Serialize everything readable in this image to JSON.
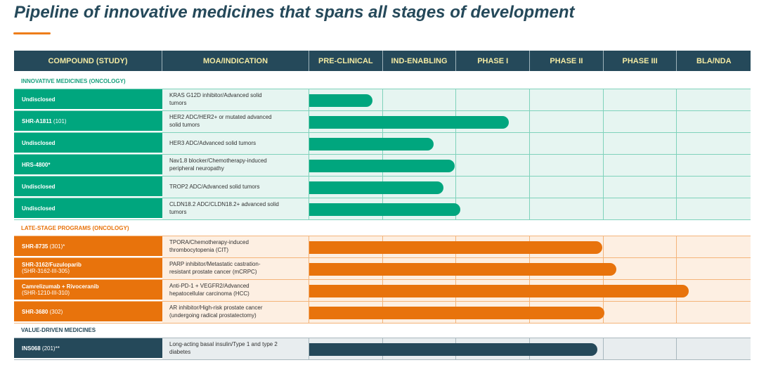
{
  "title": "Pipeline of innovative medicines that spans all stages of development",
  "columns": [
    "COMPOUND (STUDY)",
    "MOA/INDICATION",
    "PRE-CLINICAL",
    "IND-ENABLING",
    "PHASE I",
    "PHASE II",
    "PHASE III",
    "BLA/NDA"
  ],
  "sections": [
    {
      "label": "INNOVATIVE MEDICINES (ONCOLOGY)",
      "colors": {
        "label": "#17a07c",
        "cell": "#00a67e",
        "bg": "#e6f5f1",
        "grid": "#7fd2bb",
        "bar": "#00a67e"
      },
      "rows": [
        {
          "name": "Undisclosed",
          "study": "",
          "sub": "",
          "moa": "KRAS G12D inhibitor/Advanced solid tumors",
          "progress_stages": 0.86
        },
        {
          "name": "SHR-A1811",
          "study": " (101)",
          "sub": "",
          "moa": "HER2 ADC/HER2+ or mutated advanced solid tumors",
          "progress_stages": 2.71
        },
        {
          "name": "Undisclosed",
          "study": "",
          "sub": "",
          "moa": "HER3 ADC/Advanced solid tumors",
          "progress_stages": 1.69
        },
        {
          "name": "HRS-4800*",
          "study": "",
          "sub": "",
          "moa": "Nav1.8 blocker/Chemotherapy-induced peripheral neuropathy",
          "progress_stages": 1.98
        },
        {
          "name": "Undisclosed",
          "study": "",
          "sub": "",
          "moa": "TROP2 ADC/Advanced solid tumors",
          "progress_stages": 1.82
        },
        {
          "name": "Undisclosed",
          "study": "",
          "sub": "",
          "moa": "CLDN18.2 ADC/CLDN18.2+ advanced solid tumors",
          "progress_stages": 2.05
        }
      ]
    },
    {
      "label": "LATE-STAGE PROGRAMS (ONCOLOGY)",
      "colors": {
        "label": "#e8730c",
        "cell": "#e8730c",
        "bg": "#fdefe2",
        "grid": "#f4b47a",
        "bar": "#e8730c"
      },
      "rows": [
        {
          "name": "SHR-8735",
          "study": " (301)*",
          "sub": "",
          "moa": "TPORA/Chemotherapy-induced thrombocytopenia (CIT)",
          "progress_stages": 3.98
        },
        {
          "name": "SHR-3162/Fuzuloparib",
          "study": "",
          "sub": "(SHR-3162-III-305)",
          "moa": "PARP inhibitor/Metastatic castration-resistant prostate cancer (mCRPC)",
          "progress_stages": 4.17
        },
        {
          "name": "Camrelizumab + Rivoceranib",
          "study": "",
          "sub": "(SHR-1210-III-310)",
          "moa": "Anti-PD-1 + VEGFR2/Advanced hepatocellular carcinoma (HCC)",
          "progress_stages": 5.16
        },
        {
          "name": "SHR-3680",
          "study": " (302)",
          "sub": "",
          "moa": "AR inhibitor/High-risk prostate cancer (undergoing radical prostatectomy)",
          "progress_stages": 4.01
        }
      ]
    },
    {
      "label": "VALUE-DRIVEN MEDICINES",
      "colors": {
        "label": "#25495a",
        "cell": "#25495a",
        "bg": "#e8edef",
        "grid": "#a9b8be",
        "bar": "#25495a"
      },
      "rows": [
        {
          "name": "INS068",
          "study": " (201)**",
          "sub": "",
          "moa": "Long-acting basal insulin/Type 1 and type 2 diabetes",
          "progress_stages": 3.92
        }
      ]
    }
  ]
}
